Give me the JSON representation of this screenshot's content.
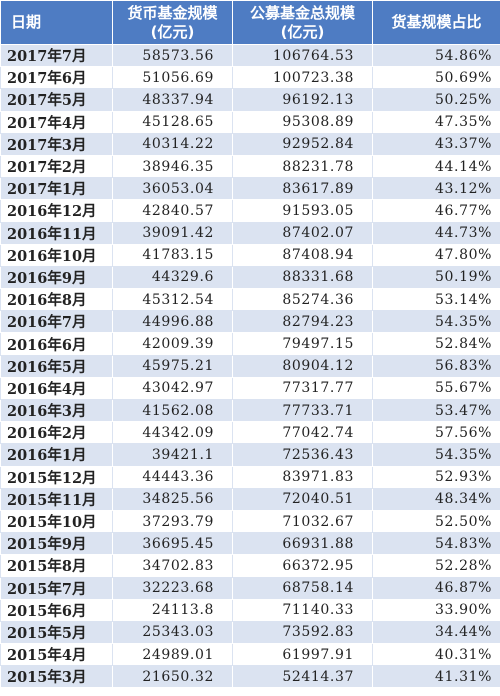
{
  "header": {
    "date": "日期",
    "money_fund_line1": "货币基金规模",
    "money_fund_line2": "(亿元)",
    "total_fund_line1": "公募基金总规模",
    "total_fund_line2": "(亿元)",
    "ratio": "货基规模占比"
  },
  "rows": [
    {
      "date": "2017年7月",
      "money": "58573.56",
      "total": "106764.53",
      "ratio": "54.86%"
    },
    {
      "date": "2017年6月",
      "money": "51056.69",
      "total": "100723.38",
      "ratio": "50.69%"
    },
    {
      "date": "2017年5月",
      "money": "48337.94",
      "total": "96192.13",
      "ratio": "50.25%"
    },
    {
      "date": "2017年4月",
      "money": "45128.65",
      "total": "95308.89",
      "ratio": "47.35%"
    },
    {
      "date": "2017年3月",
      "money": "40314.22",
      "total": "92952.84",
      "ratio": "43.37%"
    },
    {
      "date": "2017年2月",
      "money": "38946.35",
      "total": "88231.78",
      "ratio": "44.14%"
    },
    {
      "date": "2017年1月",
      "money": "36053.04",
      "total": "83617.89",
      "ratio": "43.12%"
    },
    {
      "date": "2016年12月",
      "money": "42840.57",
      "total": "91593.05",
      "ratio": "46.77%"
    },
    {
      "date": "2016年11月",
      "money": "39091.42",
      "total": "87402.07",
      "ratio": "44.73%"
    },
    {
      "date": "2016年10月",
      "money": "41783.15",
      "total": "87408.94",
      "ratio": "47.80%"
    },
    {
      "date": "2016年9月",
      "money": "44329.6",
      "total": "88331.68",
      "ratio": "50.19%"
    },
    {
      "date": "2016年8月",
      "money": "45312.54",
      "total": "85274.36",
      "ratio": "53.14%"
    },
    {
      "date": "2016年7月",
      "money": "44996.88",
      "total": "82794.23",
      "ratio": "54.35%"
    },
    {
      "date": "2016年6月",
      "money": "42009.39",
      "total": "79497.15",
      "ratio": "52.84%"
    },
    {
      "date": "2016年5月",
      "money": "45975.21",
      "total": "80904.12",
      "ratio": "56.83%"
    },
    {
      "date": "2016年4月",
      "money": "43042.97",
      "total": "77317.77",
      "ratio": "55.67%"
    },
    {
      "date": "2016年3月",
      "money": "41562.08",
      "total": "77733.71",
      "ratio": "53.47%"
    },
    {
      "date": "2016年2月",
      "money": "44342.09",
      "total": "77042.74",
      "ratio": "57.56%"
    },
    {
      "date": "2016年1月",
      "money": "39421.1",
      "total": "72536.43",
      "ratio": "54.35%"
    },
    {
      "date": "2015年12月",
      "money": "44443.36",
      "total": "83971.83",
      "ratio": "52.93%"
    },
    {
      "date": "2015年11月",
      "money": "34825.56",
      "total": "72040.51",
      "ratio": "48.34%"
    },
    {
      "date": "2015年10月",
      "money": "37293.79",
      "total": "71032.67",
      "ratio": "52.50%"
    },
    {
      "date": "2015年9月",
      "money": "36695.45",
      "total": "66931.88",
      "ratio": "54.83%"
    },
    {
      "date": "2015年8月",
      "money": "34702.83",
      "total": "66372.95",
      "ratio": "52.28%"
    },
    {
      "date": "2015年7月",
      "money": "32223.68",
      "total": "68758.14",
      "ratio": "46.87%"
    },
    {
      "date": "2015年6月",
      "money": "24113.8",
      "total": "71140.33",
      "ratio": "33.90%"
    },
    {
      "date": "2015年5月",
      "money": "25343.03",
      "total": "73592.83",
      "ratio": "34.44%"
    },
    {
      "date": "2015年4月",
      "money": "24989.01",
      "total": "61997.91",
      "ratio": "40.31%"
    },
    {
      "date": "2015年3月",
      "money": "21650.32",
      "total": "52414.37",
      "ratio": "41.31%"
    }
  ]
}
